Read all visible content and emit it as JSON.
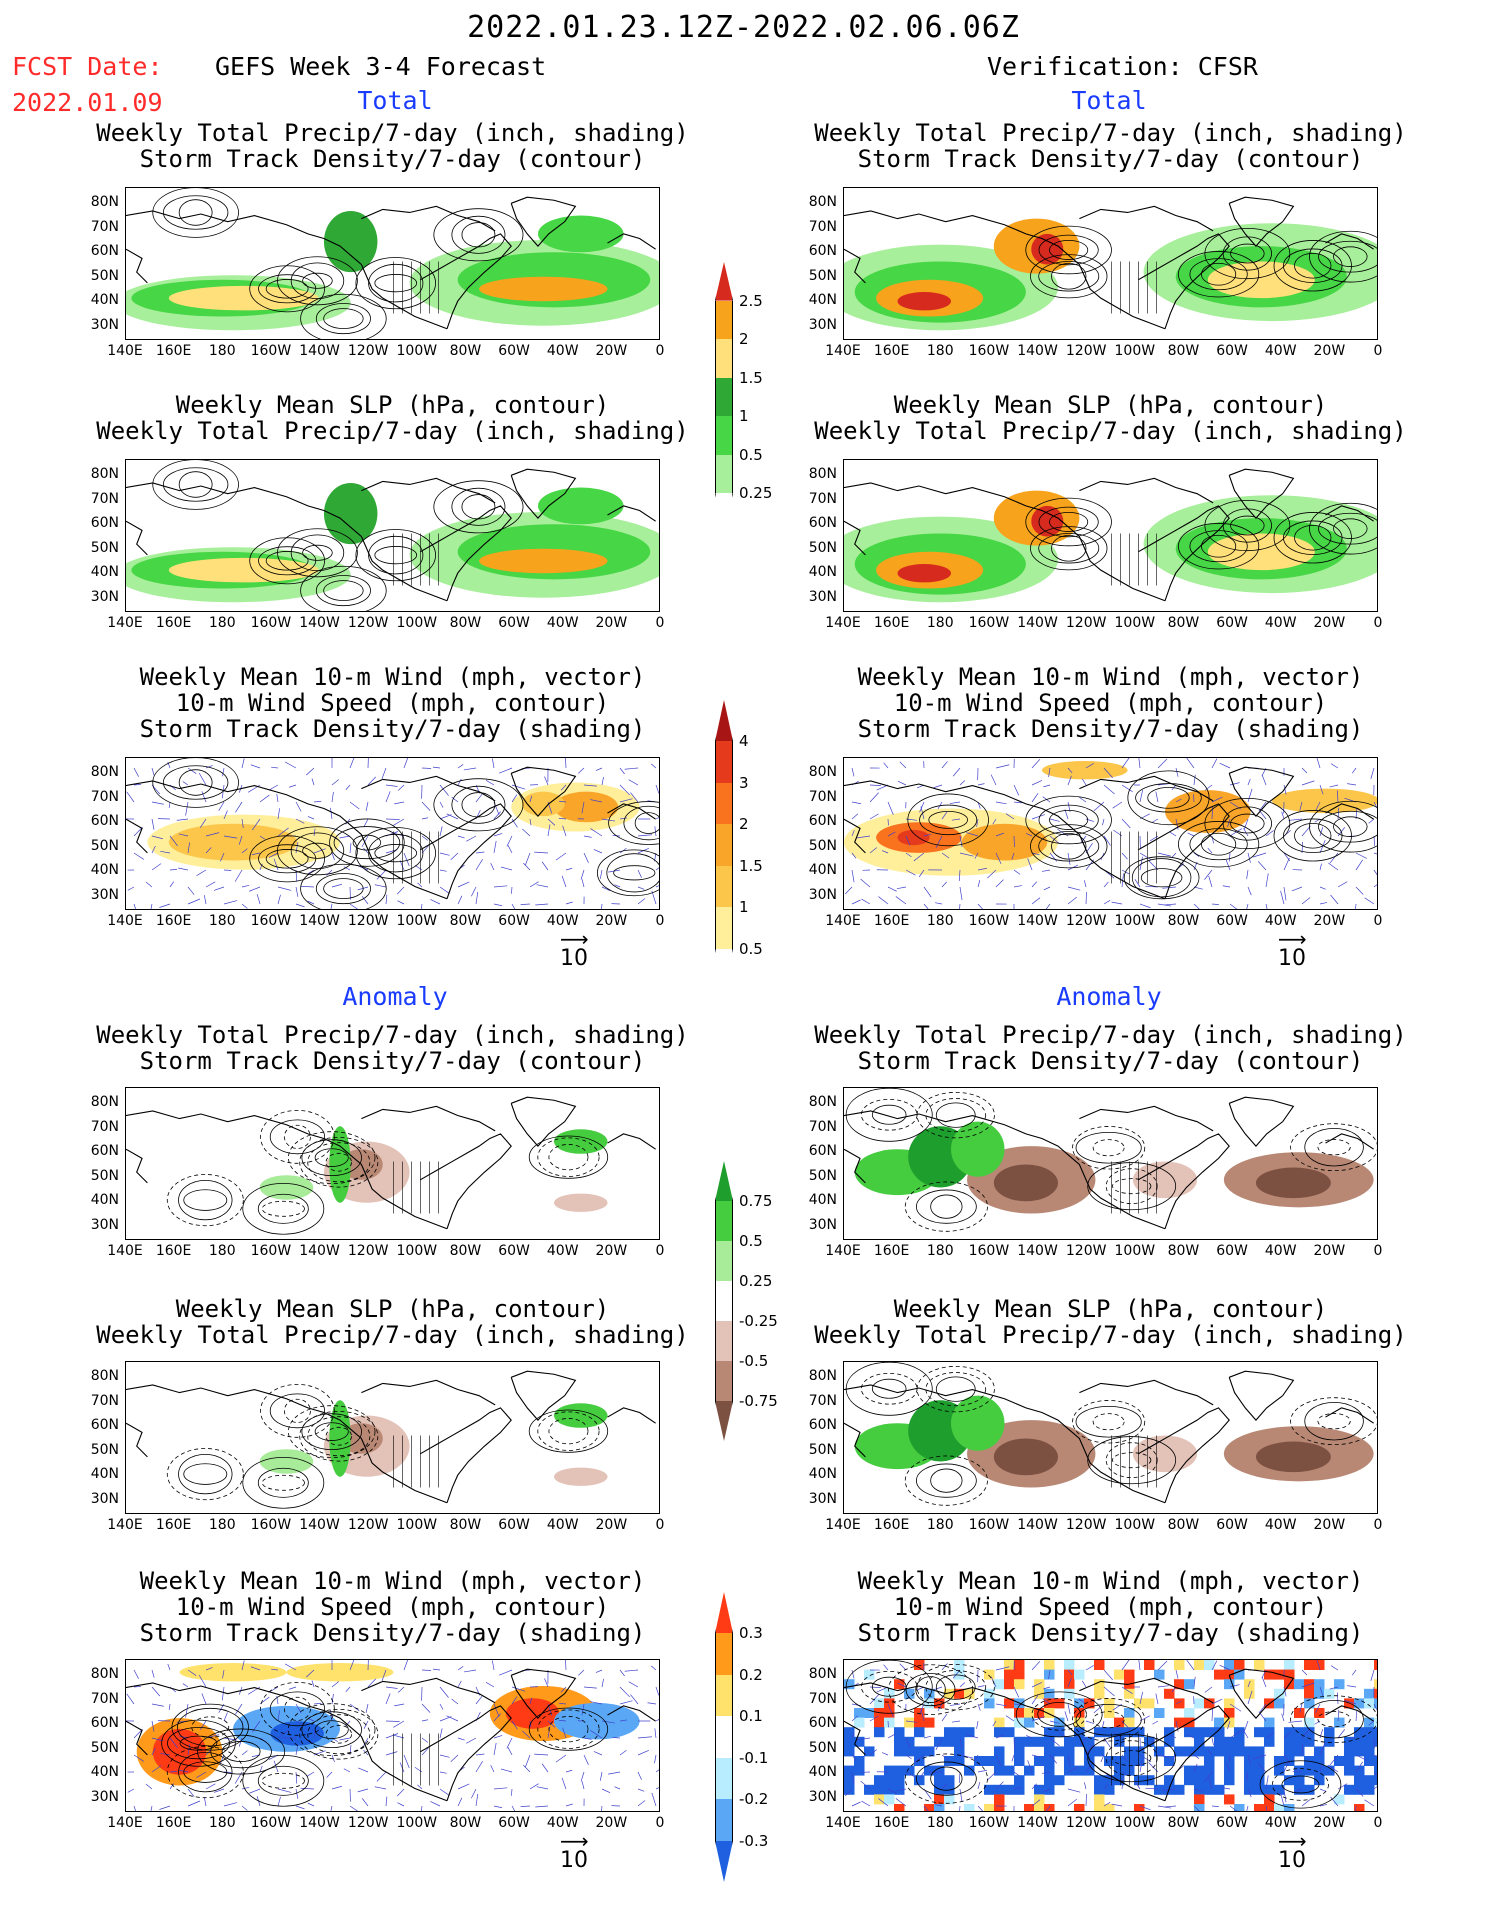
{
  "header": {
    "date_range": "2022.01.23.12Z-2022.02.06.06Z",
    "fcst_date_label": "FCST Date:",
    "fcst_date_value": "2022.01.09",
    "forecast_title": "GEFS Week 3-4 Forecast",
    "verification_title": "Verification: CFSR"
  },
  "sections": {
    "total": "Total",
    "anomaly": "Anomaly"
  },
  "panel_titles": {
    "precip_storm": [
      "Weekly Total Precip/7-day (inch, shading)",
      "Storm Track Density/7-day (contour)"
    ],
    "slp_precip": [
      "Weekly Mean SLP (hPa, contour)",
      "Weekly Total Precip/7-day (inch, shading)"
    ],
    "wind_storm": [
      "Weekly Mean 10-m Wind (mph, vector)",
      "10-m Wind Speed (mph, contour)",
      "Storm Track Density/7-day (shading)"
    ]
  },
  "axes": {
    "lat_labels": [
      "80N",
      "70N",
      "60N",
      "50N",
      "40N",
      "30N"
    ],
    "lon_labels": [
      "140E",
      "160E",
      "180",
      "160W",
      "140W",
      "120W",
      "100W",
      "80W",
      "60W",
      "40W",
      "20W",
      "0"
    ]
  },
  "vector_ref": "10",
  "colorbars": {
    "precip_total": {
      "labels": [
        "2.5",
        "2",
        "1.5",
        "1",
        "0.5",
        "0.25"
      ],
      "colors": [
        "#d62a1e",
        "#f7a31c",
        "#ffe07a",
        "#2fa835",
        "#47d646",
        "#a7ef9a",
        "#ffffff"
      ]
    },
    "storm_total": {
      "labels": [
        "4",
        "3",
        "2",
        "1.5",
        "1",
        "0.5"
      ],
      "colors": [
        "#a71515",
        "#e63a1c",
        "#f9731e",
        "#f9a52a",
        "#fcc64b",
        "#ffef9b",
        "#ffffff"
      ]
    },
    "precip_anom": {
      "labels": [
        "0.75",
        "0.5",
        "0.25",
        "-0.25",
        "-0.5",
        "-0.75"
      ],
      "colors": [
        "#1e9f2d",
        "#45cc3f",
        "#a8eb99",
        "#ffffff",
        "#e3c2b8",
        "#b88875",
        "#7d5142"
      ]
    },
    "storm_anom": {
      "labels": [
        "0.3",
        "0.2",
        "0.1",
        "-0.1",
        "-0.2",
        "-0.3"
      ],
      "colors": [
        "#ff3b16",
        "#ff9a1a",
        "#ffe26b",
        "#ffffff",
        "#b8ecff",
        "#5aa8f5",
        "#1e60e0"
      ]
    }
  },
  "map_colors": {
    "land_line": "#000000",
    "wind_vector": "#4040cc"
  }
}
